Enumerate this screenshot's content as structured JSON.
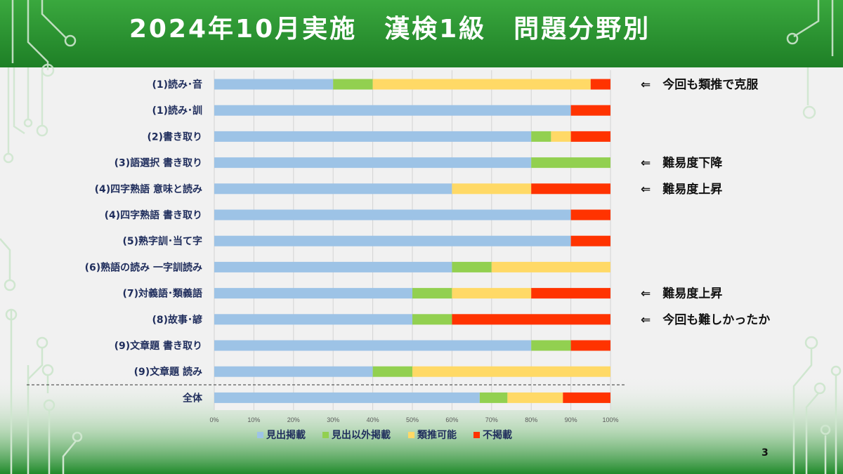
{
  "slide": {
    "title": "2024年10月実施　漢検1級　問題分野別",
    "page_number": "3"
  },
  "colors": {
    "header_green": "#2e9a34",
    "bg": "#f1f1f1",
    "label_navy": "#1f2d5c"
  },
  "chart_data": {
    "type": "bar",
    "orientation": "horizontal",
    "stacked": "percent",
    "categories": [
      "(1)読み･音",
      "(1)読み･訓",
      "(2)書き取り",
      "(3)語選択 書き取り",
      "(4)四字熟語 意味と読み",
      "(4)四字熟語 書き取り",
      "(5)熟字訓･当て字",
      "(6)熟語の読み 一字訓読み",
      "(7)対義語･類義語",
      "(8)故事･諺",
      "(9)文章題 書き取り",
      "(9)文章題 読み",
      "全体"
    ],
    "series": [
      {
        "name": "見出掲載",
        "color": "#9dc3e6",
        "values": [
          30,
          90,
          80,
          80,
          60,
          90,
          90,
          60,
          50,
          50,
          80,
          40,
          67
        ]
      },
      {
        "name": "見出以外掲載",
        "color": "#92d050",
        "values": [
          10,
          0,
          5,
          20,
          0,
          0,
          0,
          10,
          10,
          10,
          10,
          10,
          7
        ]
      },
      {
        "name": "類推可能",
        "color": "#ffd966",
        "values": [
          55,
          0,
          5,
          0,
          20,
          0,
          0,
          30,
          20,
          0,
          0,
          50,
          14
        ]
      },
      {
        "name": "不掲載",
        "color": "#ff3300",
        "values": [
          5,
          10,
          10,
          0,
          20,
          10,
          10,
          0,
          20,
          40,
          10,
          0,
          12
        ]
      }
    ],
    "x_ticks": [
      "0%",
      "10%",
      "20%",
      "30%",
      "40%",
      "50%",
      "60%",
      "70%",
      "80%",
      "90%",
      "100%"
    ],
    "xlim": [
      0,
      100
    ],
    "grid": true,
    "legend_position": "bottom",
    "annotations": [
      {
        "row": 0,
        "text": "⇐　今回も類推で克服"
      },
      {
        "row": 3,
        "text": "⇐　難易度下降"
      },
      {
        "row": 4,
        "text": "⇐　難易度上昇"
      },
      {
        "row": 8,
        "text": "⇐　難易度上昇"
      },
      {
        "row": 9,
        "text": "⇐　今回も難しかったか"
      }
    ]
  }
}
